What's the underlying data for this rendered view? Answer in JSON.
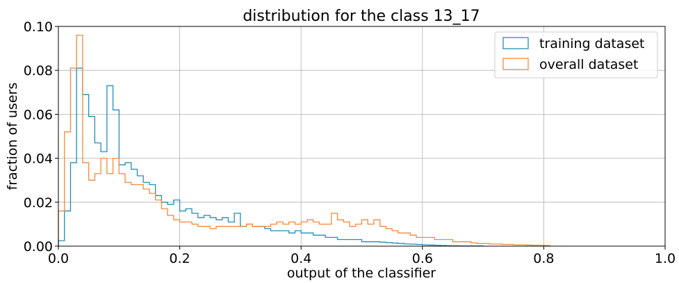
{
  "chart_data": {
    "type": "histogram-step",
    "title": "distribution for the class 13_17",
    "xlabel": "output of the classifier",
    "ylabel": "fraction of users",
    "xlim": [
      0.0,
      1.0
    ],
    "ylim": [
      0.0,
      0.1
    ],
    "xticks": [
      "0.0",
      "0.2",
      "0.4",
      "0.6",
      "0.8",
      "1.0"
    ],
    "yticks": [
      "0.00",
      "0.02",
      "0.04",
      "0.06",
      "0.08",
      "0.10"
    ],
    "grid": true,
    "legend_position": "top-right",
    "bin_width": 0.01,
    "colors": {
      "training": "#1f8fb4",
      "overall": "#f5883a"
    },
    "series": [
      {
        "name": "training dataset",
        "key": "training",
        "values": [
          0.0025,
          0.016,
          0.038,
          0.081,
          0.069,
          0.059,
          0.047,
          0.043,
          0.073,
          0.062,
          0.037,
          0.038,
          0.035,
          0.032,
          0.029,
          0.028,
          0.023,
          0.02,
          0.019,
          0.021,
          0.016,
          0.017,
          0.015,
          0.013,
          0.014,
          0.013,
          0.012,
          0.013,
          0.011,
          0.015,
          0.009,
          0.01,
          0.009,
          0.009,
          0.008,
          0.007,
          0.007,
          0.007,
          0.006,
          0.007,
          0.006,
          0.006,
          0.005,
          0.005,
          0.004,
          0.004,
          0.003,
          0.003,
          0.003,
          0.003,
          0.002,
          0.002,
          0.002,
          0.0018,
          0.0016,
          0.0014,
          0.0012,
          0.001,
          0.0009,
          0.0008,
          0.0006,
          0.0005,
          0.0004,
          0.0003,
          0.0002,
          0.0002,
          0.0001,
          0.0001,
          0.0001,
          0.0001
        ]
      },
      {
        "name": "overall dataset",
        "key": "overall",
        "values": [
          0.016,
          0.052,
          0.081,
          0.096,
          0.038,
          0.03,
          0.033,
          0.04,
          0.033,
          0.04,
          0.033,
          0.029,
          0.028,
          0.028,
          0.026,
          0.024,
          0.021,
          0.017,
          0.014,
          0.012,
          0.011,
          0.011,
          0.01,
          0.009,
          0.009,
          0.008,
          0.009,
          0.009,
          0.009,
          0.009,
          0.009,
          0.01,
          0.009,
          0.009,
          0.009,
          0.01,
          0.011,
          0.01,
          0.011,
          0.01,
          0.011,
          0.012,
          0.011,
          0.01,
          0.01,
          0.015,
          0.012,
          0.011,
          0.009,
          0.01,
          0.012,
          0.01,
          0.012,
          0.009,
          0.008,
          0.007,
          0.006,
          0.006,
          0.005,
          0.004,
          0.004,
          0.004,
          0.003,
          0.003,
          0.003,
          0.002,
          0.002,
          0.002,
          0.0015,
          0.0012,
          0.0012,
          0.001,
          0.001,
          0.0008,
          0.0008,
          0.0006,
          0.0006,
          0.0005,
          0.0004,
          0.0004,
          0.0003
        ]
      }
    ]
  }
}
